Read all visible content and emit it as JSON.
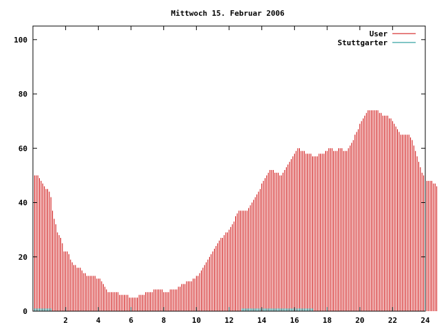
{
  "chart_data": {
    "type": "bar",
    "title": "Mittwoch 15. Februar 2006",
    "xlabel": "",
    "ylabel": "",
    "xlim": [
      0,
      24
    ],
    "ylim": [
      0,
      105
    ],
    "x_ticks": [
      2,
      4,
      6,
      8,
      10,
      12,
      14,
      16,
      18,
      20,
      22,
      24
    ],
    "y_ticks": [
      0,
      20,
      40,
      60,
      80,
      100
    ],
    "grid": false,
    "legend_position": "top-right",
    "series": [
      {
        "name": "User",
        "color": "#cc0000",
        "x_start": 0,
        "x_step": 0.1,
        "values": [
          50,
          50,
          50,
          50,
          49,
          48,
          47,
          46,
          45,
          45,
          44,
          42,
          37,
          34,
          32,
          29,
          28,
          27,
          25,
          22,
          22,
          22,
          21,
          19,
          18,
          17,
          17,
          16,
          16,
          16,
          15,
          14,
          14,
          13,
          13,
          13,
          13,
          13,
          13,
          12,
          12,
          12,
          11,
          10,
          9,
          8,
          7,
          7,
          7,
          7,
          7,
          7,
          7,
          6,
          6,
          6,
          6,
          6,
          6,
          5,
          5,
          5,
          5,
          5,
          5,
          6,
          6,
          6,
          6,
          7,
          7,
          7,
          7,
          7,
          8,
          8,
          8,
          8,
          8,
          8,
          7,
          7,
          7,
          7,
          8,
          8,
          8,
          8,
          8,
          9,
          9,
          10,
          10,
          10,
          11,
          11,
          11,
          11,
          12,
          12,
          13,
          13,
          14,
          15,
          16,
          17,
          18,
          19,
          20,
          21,
          22,
          23,
          24,
          25,
          26,
          27,
          27,
          28,
          29,
          29,
          30,
          31,
          32,
          33,
          35,
          36,
          37,
          37,
          37,
          37,
          37,
          37,
          38,
          39,
          40,
          41,
          42,
          43,
          44,
          45,
          47,
          48,
          49,
          50,
          51,
          52,
          52,
          52,
          51,
          51,
          51,
          50,
          50,
          51,
          52,
          53,
          54,
          55,
          56,
          57,
          58,
          59,
          60,
          60,
          59,
          59,
          59,
          58,
          58,
          58,
          58,
          57,
          57,
          57,
          57,
          58,
          58,
          58,
          58,
          59,
          59,
          60,
          60,
          60,
          59,
          59,
          59,
          60,
          60,
          60,
          59,
          59,
          59,
          60,
          61,
          62,
          63,
          65,
          66,
          67,
          69,
          70,
          71,
          72,
          73,
          74,
          74,
          74,
          74,
          74,
          74,
          74,
          73,
          73,
          72,
          72,
          72,
          72,
          71,
          71,
          70,
          69,
          68,
          67,
          66,
          65,
          65,
          65,
          65,
          65,
          65,
          64,
          63,
          61,
          59,
          57,
          55,
          53,
          51,
          50,
          49,
          48,
          48,
          48,
          48,
          47,
          47,
          46
        ]
      },
      {
        "name": "Stuttgarter",
        "color": "#008b8b",
        "x_start": 0,
        "x_step": 0.1,
        "values": [
          1,
          1,
          1,
          1,
          1,
          1,
          1,
          1,
          1,
          1,
          1,
          1,
          0,
          0,
          0,
          0,
          0,
          0,
          0,
          0,
          0,
          0,
          0,
          0,
          0,
          0,
          0,
          0,
          0,
          0,
          0,
          0,
          0,
          0,
          0,
          0,
          0,
          0,
          0,
          0,
          0,
          0,
          0,
          0,
          0,
          0,
          0,
          0,
          0,
          0,
          0,
          0,
          0,
          0,
          0,
          0,
          0,
          0,
          0,
          0,
          0,
          0,
          0,
          0,
          0,
          0,
          0,
          0,
          0,
          0,
          0,
          0,
          0,
          0,
          0,
          0,
          0,
          0,
          0,
          0,
          0,
          0,
          0,
          0,
          0,
          0,
          0,
          0,
          0,
          0,
          0,
          0,
          0,
          0,
          0,
          0,
          0,
          0,
          0,
          0,
          0,
          0,
          0,
          0,
          0,
          0,
          0,
          0,
          0,
          0,
          0,
          0,
          0,
          0,
          0,
          0,
          0,
          0,
          0,
          0,
          0,
          0,
          0,
          0,
          0,
          0,
          0,
          0,
          1,
          1,
          1,
          1,
          1,
          1,
          1,
          1,
          1,
          1,
          1,
          1,
          1,
          1,
          1,
          1,
          1,
          1,
          1,
          1,
          1,
          1,
          1,
          1,
          1,
          1,
          1,
          1,
          1,
          1,
          1,
          1,
          1,
          1,
          1,
          1,
          1,
          1,
          1,
          1,
          1,
          1,
          1,
          1,
          0,
          0,
          0,
          0,
          0,
          0,
          0,
          0,
          0,
          0,
          0,
          0,
          0,
          0,
          0,
          0,
          0,
          0,
          0,
          0,
          0,
          0,
          0,
          0,
          0,
          0,
          0,
          0,
          0,
          0,
          0,
          0,
          0,
          0,
          0,
          0,
          0,
          0,
          0,
          0,
          0,
          0,
          0,
          0,
          0,
          0,
          0,
          0,
          0,
          0,
          0,
          0,
          0,
          0,
          0,
          0,
          0,
          0,
          0,
          0,
          0,
          0,
          0,
          0,
          0,
          0,
          0,
          0,
          0,
          0,
          0,
          0,
          0,
          0,
          0,
          0,
          0,
          0,
          0,
          0,
          0,
          0,
          0,
          0,
          0,
          1,
          1,
          1
        ]
      }
    ]
  }
}
